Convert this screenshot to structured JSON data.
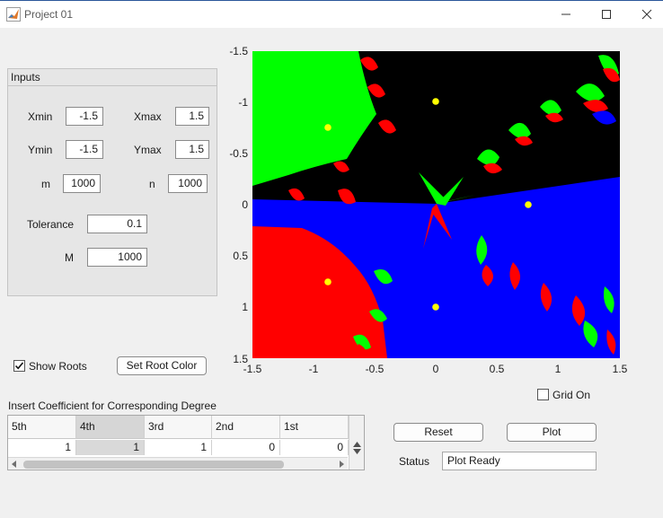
{
  "window": {
    "title": "Project 01",
    "minimize_icon": "minimize-icon",
    "maximize_icon": "maximize-icon",
    "close_icon": "close-icon"
  },
  "inputs_panel": {
    "title": "Inputs",
    "xmin": {
      "label": "Xmin",
      "value": "-1.5"
    },
    "xmax": {
      "label": "Xmax",
      "value": "1.5"
    },
    "ymin": {
      "label": "Ymin",
      "value": "-1.5"
    },
    "ymax": {
      "label": "Ymax",
      "value": "1.5"
    },
    "m": {
      "label": "m",
      "value": "1000"
    },
    "n": {
      "label": "n",
      "value": "1000"
    },
    "tolerance": {
      "label": "Tolerance",
      "value": "0.1"
    },
    "M": {
      "label": "M",
      "value": "1000"
    }
  },
  "plot": {
    "y_ticks": [
      "-1.5",
      "-1",
      "-0.5",
      "0",
      "0.5",
      "1",
      "1.5"
    ],
    "x_ticks": [
      "-1.5",
      "-1",
      "-0.5",
      "0",
      "0.5",
      "1",
      "1.5"
    ],
    "colors": {
      "root1": "#00ff00",
      "root2": "#ff0000",
      "root3": "#0000ff",
      "other": "#000000",
      "marker": "#ffff00"
    }
  },
  "controls": {
    "show_roots_label": "Show Roots",
    "show_roots_checked": true,
    "set_root_color_label": "Set Root Color",
    "grid_on_label": "Grid On",
    "grid_on_checked": false,
    "reset_label": "Reset",
    "plot_label": "Plot",
    "status_label": "Status",
    "status_value": "Plot Ready"
  },
  "coeff_table": {
    "caption": "Insert Coefficient for Corresponding Degree",
    "headers": [
      "5th",
      "4th",
      "3rd",
      "2nd",
      "1st"
    ],
    "values": [
      "1",
      "1",
      "1",
      "0",
      "0"
    ]
  }
}
